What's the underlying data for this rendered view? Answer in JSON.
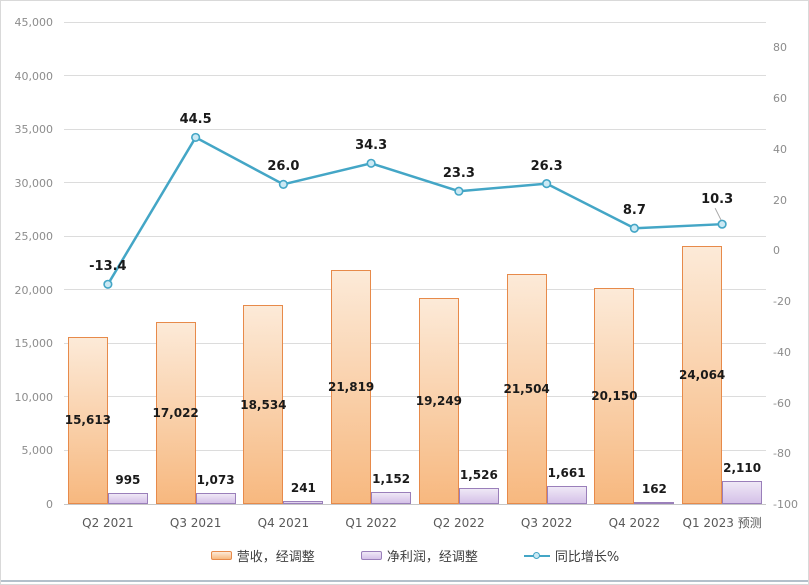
{
  "window": {
    "background": "#FFFFFF",
    "border_color": "#D9D9D9",
    "bottom_bar_color": "#B4C0CB"
  },
  "chart_data": {
    "type": "combo",
    "title": "",
    "categories": [
      "Q2 2021",
      "Q3 2021",
      "Q4 2021",
      "Q1 2022",
      "Q2 2022",
      "Q3 2022",
      "Q4 2022",
      "Q1 2023 预测"
    ],
    "series": [
      {
        "name": "营收，经调整",
        "type": "bar",
        "axis": "left",
        "label_position": "center",
        "values": [
          15613,
          17022,
          18534,
          21819,
          19249,
          21504,
          20150,
          24064
        ],
        "border_color": "#E78A4A",
        "fill_top": "#FCEAD8",
        "fill_bottom": "#F7B87F"
      },
      {
        "name": "净利润，经调整",
        "type": "bar",
        "axis": "left",
        "label_position": "above",
        "values": [
          995,
          1073,
          241,
          1152,
          1526,
          1661,
          162,
          2110
        ],
        "border_color": "#9A7FBA",
        "fill_top": "#EFE8F6",
        "fill_bottom": "#D5C1E8"
      },
      {
        "name": "同比增长%",
        "type": "line",
        "axis": "right",
        "values": [
          -13.4,
          44.5,
          26.0,
          34.3,
          23.3,
          26.3,
          8.7,
          10.3
        ],
        "color": "#44A6C6",
        "marker_fill": "#CBE9F4",
        "label_decimals": 1,
        "label_adjust": {
          "7": {
            "dx": -5,
            "dy": -7,
            "leader": true
          }
        },
        "leader_color": "#A6A6A6"
      }
    ],
    "left_axis": {
      "min": 0,
      "max": 45000,
      "tick_step": 5000,
      "tick_labels": [
        "0",
        "5,000",
        "10,000",
        "15,000",
        "20,000",
        "25,000",
        "30,000",
        "35,000",
        "40,000",
        "45,000"
      ]
    },
    "right_axis": {
      "min": -100,
      "max": 90,
      "tick_min": -100,
      "tick_max": 80,
      "tick_step": 20,
      "tick_labels": [
        "-100",
        "-80",
        "-60",
        "-40",
        "-20",
        "0",
        "20",
        "40",
        "60",
        "80"
      ]
    },
    "grid": true,
    "gridline_color": "#DCDCDC",
    "axisline_color": "#C6C6C6",
    "legend_position": "bottom"
  }
}
